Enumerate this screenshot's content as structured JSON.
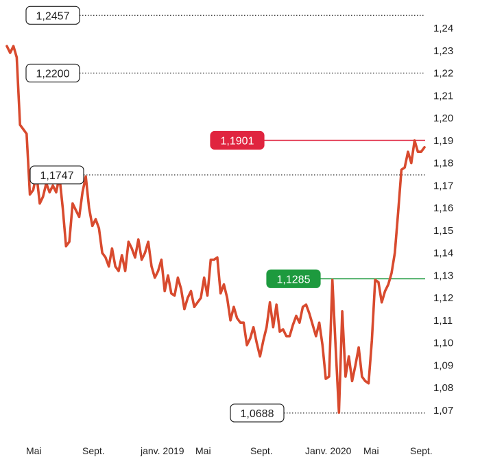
{
  "chart_data": {
    "type": "line",
    "x_labels": [
      "Mai",
      "Sept.",
      "janv. 2019",
      "Mai",
      "Sept.",
      "Janv. 2020",
      "Mai",
      "Sept."
    ],
    "ylim": [
      1.065,
      1.245
    ],
    "y_ticks": [
      "1,24",
      "1,23",
      "1,22",
      "1,21",
      "1,20",
      "1,19",
      "1,18",
      "1,17",
      "1,16",
      "1,15",
      "1,14",
      "1,13",
      "1,12",
      "1,11",
      "1,10",
      "1,09",
      "1,08",
      "1,07"
    ],
    "y_tick_values": [
      1.24,
      1.23,
      1.22,
      1.21,
      1.2,
      1.19,
      1.18,
      1.17,
      1.16,
      1.15,
      1.14,
      1.13,
      1.12,
      1.11,
      1.1,
      1.09,
      1.08,
      1.07
    ],
    "grid": false,
    "series_color": "#d84a2e",
    "reference_lines": [
      {
        "label": "1,2457",
        "value": 1.2457,
        "style": "dotted",
        "color": "#222222",
        "box_fill": "#ffffff",
        "text_color": "#222222"
      },
      {
        "label": "1,2200",
        "value": 1.22,
        "style": "dotted",
        "color": "#222222",
        "box_fill": "#ffffff",
        "text_color": "#222222"
      },
      {
        "label": "1,1901",
        "value": 1.1901,
        "style": "solid",
        "color": "#e0243f",
        "box_fill": "#e0243f",
        "text_color": "#ffffff"
      },
      {
        "label": "1,1747",
        "value": 1.1747,
        "style": "dotted",
        "color": "#222222",
        "box_fill": "#ffffff",
        "text_color": "#222222"
      },
      {
        "label": "1,1285",
        "value": 1.1285,
        "style": "solid",
        "color": "#1d9a3e",
        "box_fill": "#1d9a3e",
        "text_color": "#ffffff"
      },
      {
        "label": "1,0688",
        "value": 1.0688,
        "style": "dotted",
        "color": "#222222",
        "box_fill": "#ffffff",
        "text_color": "#222222"
      }
    ],
    "values": [
      1.232,
      1.229,
      1.232,
      1.227,
      1.197,
      1.195,
      1.193,
      1.166,
      1.168,
      1.175,
      1.162,
      1.165,
      1.171,
      1.167,
      1.17,
      1.167,
      1.174,
      1.16,
      1.143,
      1.145,
      1.162,
      1.159,
      1.156,
      1.167,
      1.174,
      1.16,
      1.152,
      1.155,
      1.151,
      1.14,
      1.138,
      1.134,
      1.142,
      1.134,
      1.132,
      1.139,
      1.132,
      1.145,
      1.142,
      1.138,
      1.146,
      1.137,
      1.14,
      1.145,
      1.134,
      1.129,
      1.132,
      1.137,
      1.123,
      1.13,
      1.122,
      1.121,
      1.129,
      1.124,
      1.115,
      1.12,
      1.123,
      1.116,
      1.118,
      1.12,
      1.129,
      1.121,
      1.137,
      1.137,
      1.138,
      1.122,
      1.126,
      1.12,
      1.11,
      1.116,
      1.111,
      1.109,
      1.109,
      1.099,
      1.102,
      1.107,
      1.1,
      1.094,
      1.101,
      1.107,
      1.118,
      1.107,
      1.117,
      1.105,
      1.106,
      1.103,
      1.103,
      1.108,
      1.112,
      1.109,
      1.116,
      1.117,
      1.113,
      1.108,
      1.103,
      1.109,
      1.099,
      1.084,
      1.085,
      1.128,
      1.098,
      1.069,
      1.114,
      1.085,
      1.094,
      1.083,
      1.09,
      1.098,
      1.085,
      1.083,
      1.082,
      1.101,
      1.128,
      1.127,
      1.118,
      1.123,
      1.126,
      1.131,
      1.14,
      1.158,
      1.177,
      1.178,
      1.185,
      1.18,
      1.19,
      1.185,
      1.185,
      1.187
    ]
  }
}
